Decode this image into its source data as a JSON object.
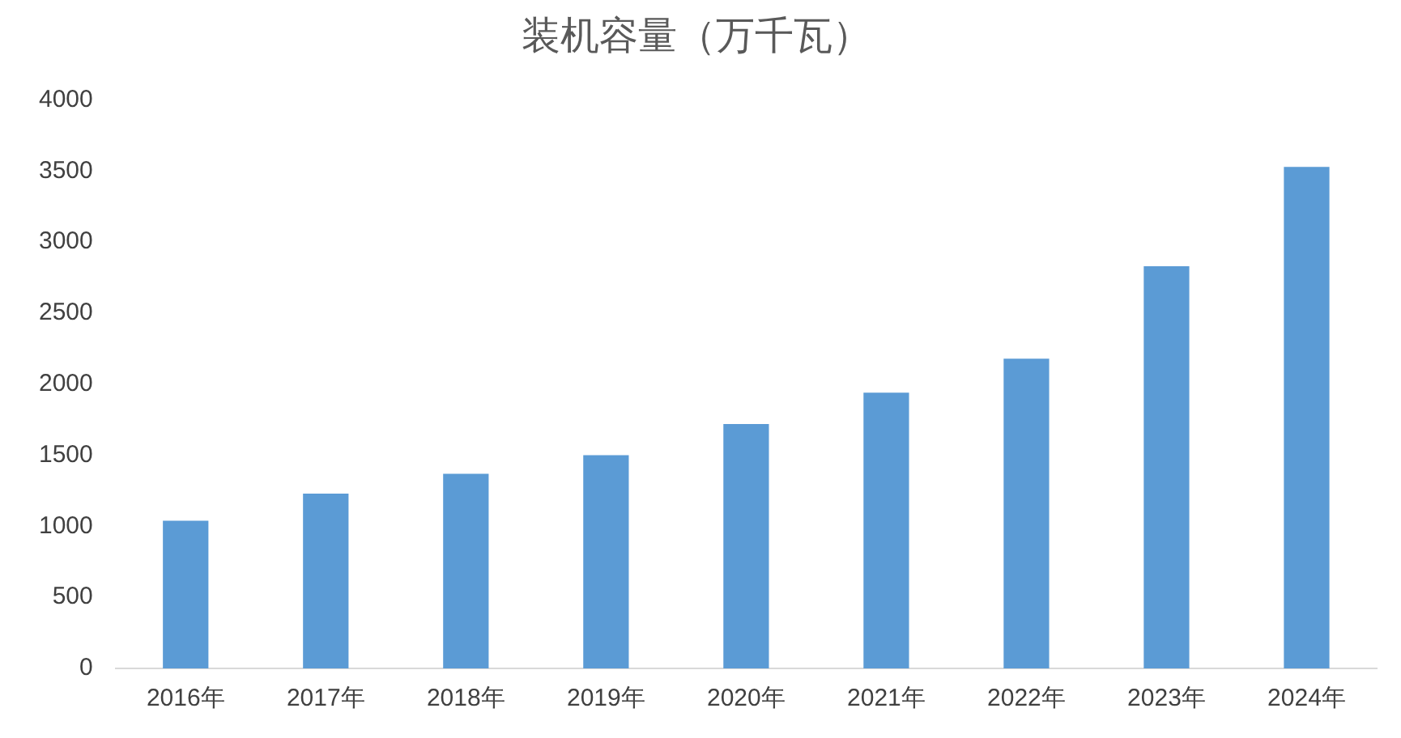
{
  "chart_data": {
    "type": "bar",
    "title": "装机容量（万千瓦）",
    "categories": [
      "2016年",
      "2017年",
      "2018年",
      "2019年",
      "2020年",
      "2021年",
      "2022年",
      "2023年",
      "2024年"
    ],
    "values": [
      1040,
      1230,
      1370,
      1500,
      1720,
      1940,
      2180,
      2830,
      3530
    ],
    "color": "#5b9bd5",
    "ylim": [
      0,
      4000
    ],
    "yticks": [
      0,
      500,
      1000,
      1500,
      2000,
      2500,
      3000,
      3500,
      4000
    ],
    "grid": false,
    "legend": false
  }
}
